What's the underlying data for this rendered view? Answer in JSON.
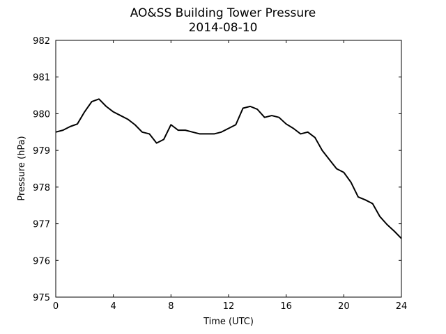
{
  "chart_data": {
    "type": "line",
    "title": "AO&SS Building Tower Pressure",
    "subtitle": "2014-08-10",
    "x_label": "Time (UTC)",
    "y_label": "Pressure (hPa)",
    "x": [
      0,
      0.5,
      1,
      1.5,
      2,
      2.5,
      3,
      3.5,
      4,
      4.5,
      5,
      5.5,
      6,
      6.5,
      7,
      7.5,
      8,
      8.5,
      9,
      9.5,
      10,
      10.5,
      11,
      11.5,
      12,
      12.5,
      13,
      13.5,
      14,
      14.5,
      15,
      15.5,
      16,
      16.5,
      17,
      17.5,
      18,
      18.5,
      19,
      19.5,
      20,
      20.5,
      21,
      21.5,
      22,
      22.5,
      23,
      23.5,
      24
    ],
    "series": [
      {
        "color": "#000000",
        "values": [
          979.5,
          979.55,
          979.65,
          979.72,
          980.05,
          980.33,
          980.4,
          980.2,
          980.05,
          979.95,
          979.85,
          979.7,
          979.5,
          979.45,
          979.2,
          979.3,
          979.7,
          979.55,
          979.55,
          979.5,
          979.45,
          979.45,
          979.45,
          979.5,
          979.6,
          979.7,
          980.15,
          980.2,
          980.12,
          979.9,
          979.95,
          979.9,
          979.72,
          979.6,
          979.45,
          979.5,
          979.35,
          979.0,
          978.75,
          978.5,
          978.4,
          978.13,
          977.73,
          977.65,
          977.55,
          977.2,
          976.98,
          976.8,
          976.6
        ]
      }
    ],
    "xlim": [
      0,
      24
    ],
    "xticks": [
      0,
      4,
      8,
      12,
      16,
      20,
      24
    ],
    "ylim": [
      975,
      982
    ],
    "yticks": [
      975,
      976,
      977,
      978,
      979,
      980,
      981,
      982
    ]
  }
}
